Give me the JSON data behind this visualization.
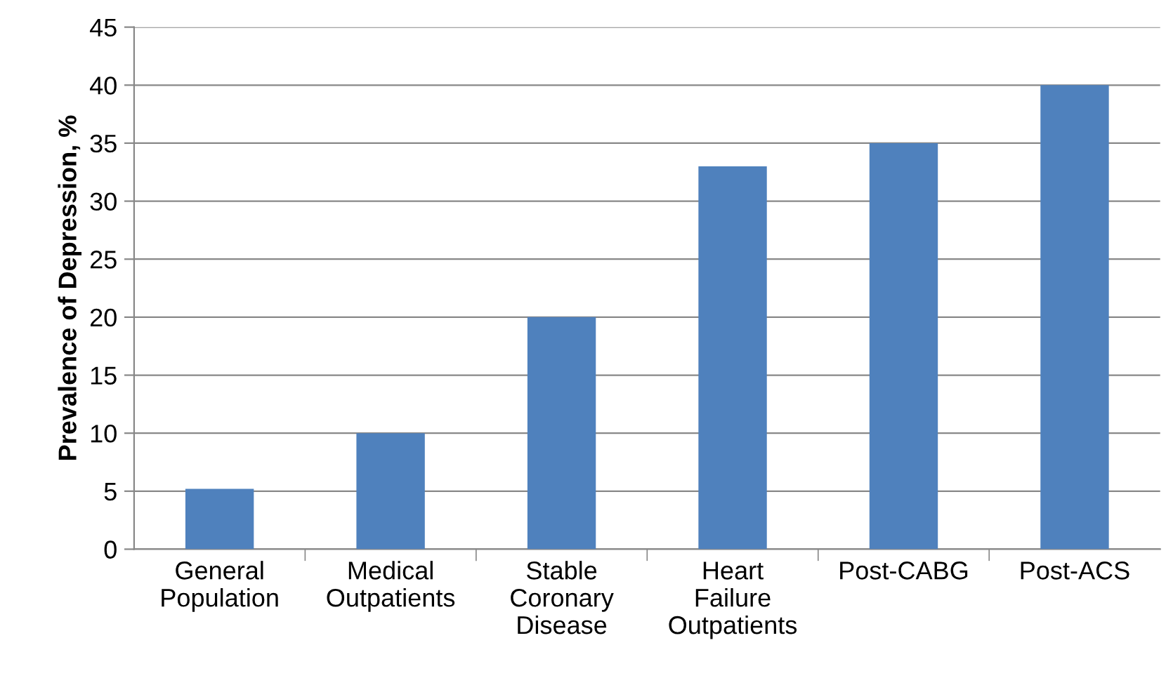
{
  "chart_data": {
    "type": "bar",
    "categories": [
      "General Population",
      "Medical Outpatients",
      "Stable Coronary Disease",
      "Heart Failure Outpatients",
      "Post-CABG",
      "Post-ACS"
    ],
    "values": [
      5.2,
      10,
      20,
      33,
      35,
      40
    ],
    "color": "#4f81bd",
    "ylabel": "Prevalence of Depression, %",
    "ylim": [
      0,
      45
    ],
    "yticks": [
      0,
      5,
      10,
      15,
      20,
      25,
      30,
      35,
      40,
      45
    ],
    "grid": "y"
  }
}
